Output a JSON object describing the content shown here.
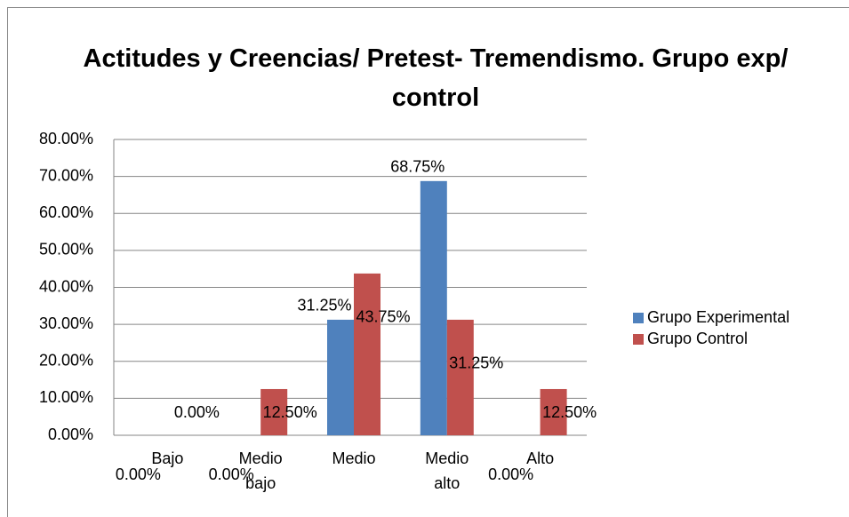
{
  "chart_data": {
    "type": "bar",
    "title": "Actitudes y Creencias/  Pretest- Tremendismo. Grupo exp/ control",
    "categories": [
      "Bajo",
      "Medio bajo",
      "Medio",
      "Medio alto",
      "Alto"
    ],
    "series": [
      {
        "name": "Grupo Experimental",
        "color": "#4f81bd",
        "values": [
          0,
          0,
          31.25,
          68.75,
          0
        ],
        "value_labels": [
          "0.00%",
          "0.00%",
          "31.25%",
          "68.75%",
          "0.00%"
        ]
      },
      {
        "name": "Grupo Control",
        "color": "#c0504d",
        "values": [
          0,
          12.5,
          43.75,
          31.25,
          12.5
        ],
        "value_labels": [
          "0.00%",
          "12.50%",
          "43.75%",
          "31.25%",
          "12.50%"
        ]
      }
    ],
    "ylim": [
      0,
      80
    ],
    "yticks": [
      {
        "value": 0,
        "label": "0.00%"
      },
      {
        "value": 10,
        "label": "10.00%"
      },
      {
        "value": 20,
        "label": "20.00%"
      },
      {
        "value": 30,
        "label": "30.00%"
      },
      {
        "value": 40,
        "label": "40.00%"
      },
      {
        "value": 50,
        "label": "50.00%"
      },
      {
        "value": 60,
        "label": "60.00%"
      },
      {
        "value": 70,
        "label": "70.00%"
      },
      {
        "value": 80,
        "label": "80.00%"
      }
    ],
    "grid": true,
    "legend": "right"
  }
}
